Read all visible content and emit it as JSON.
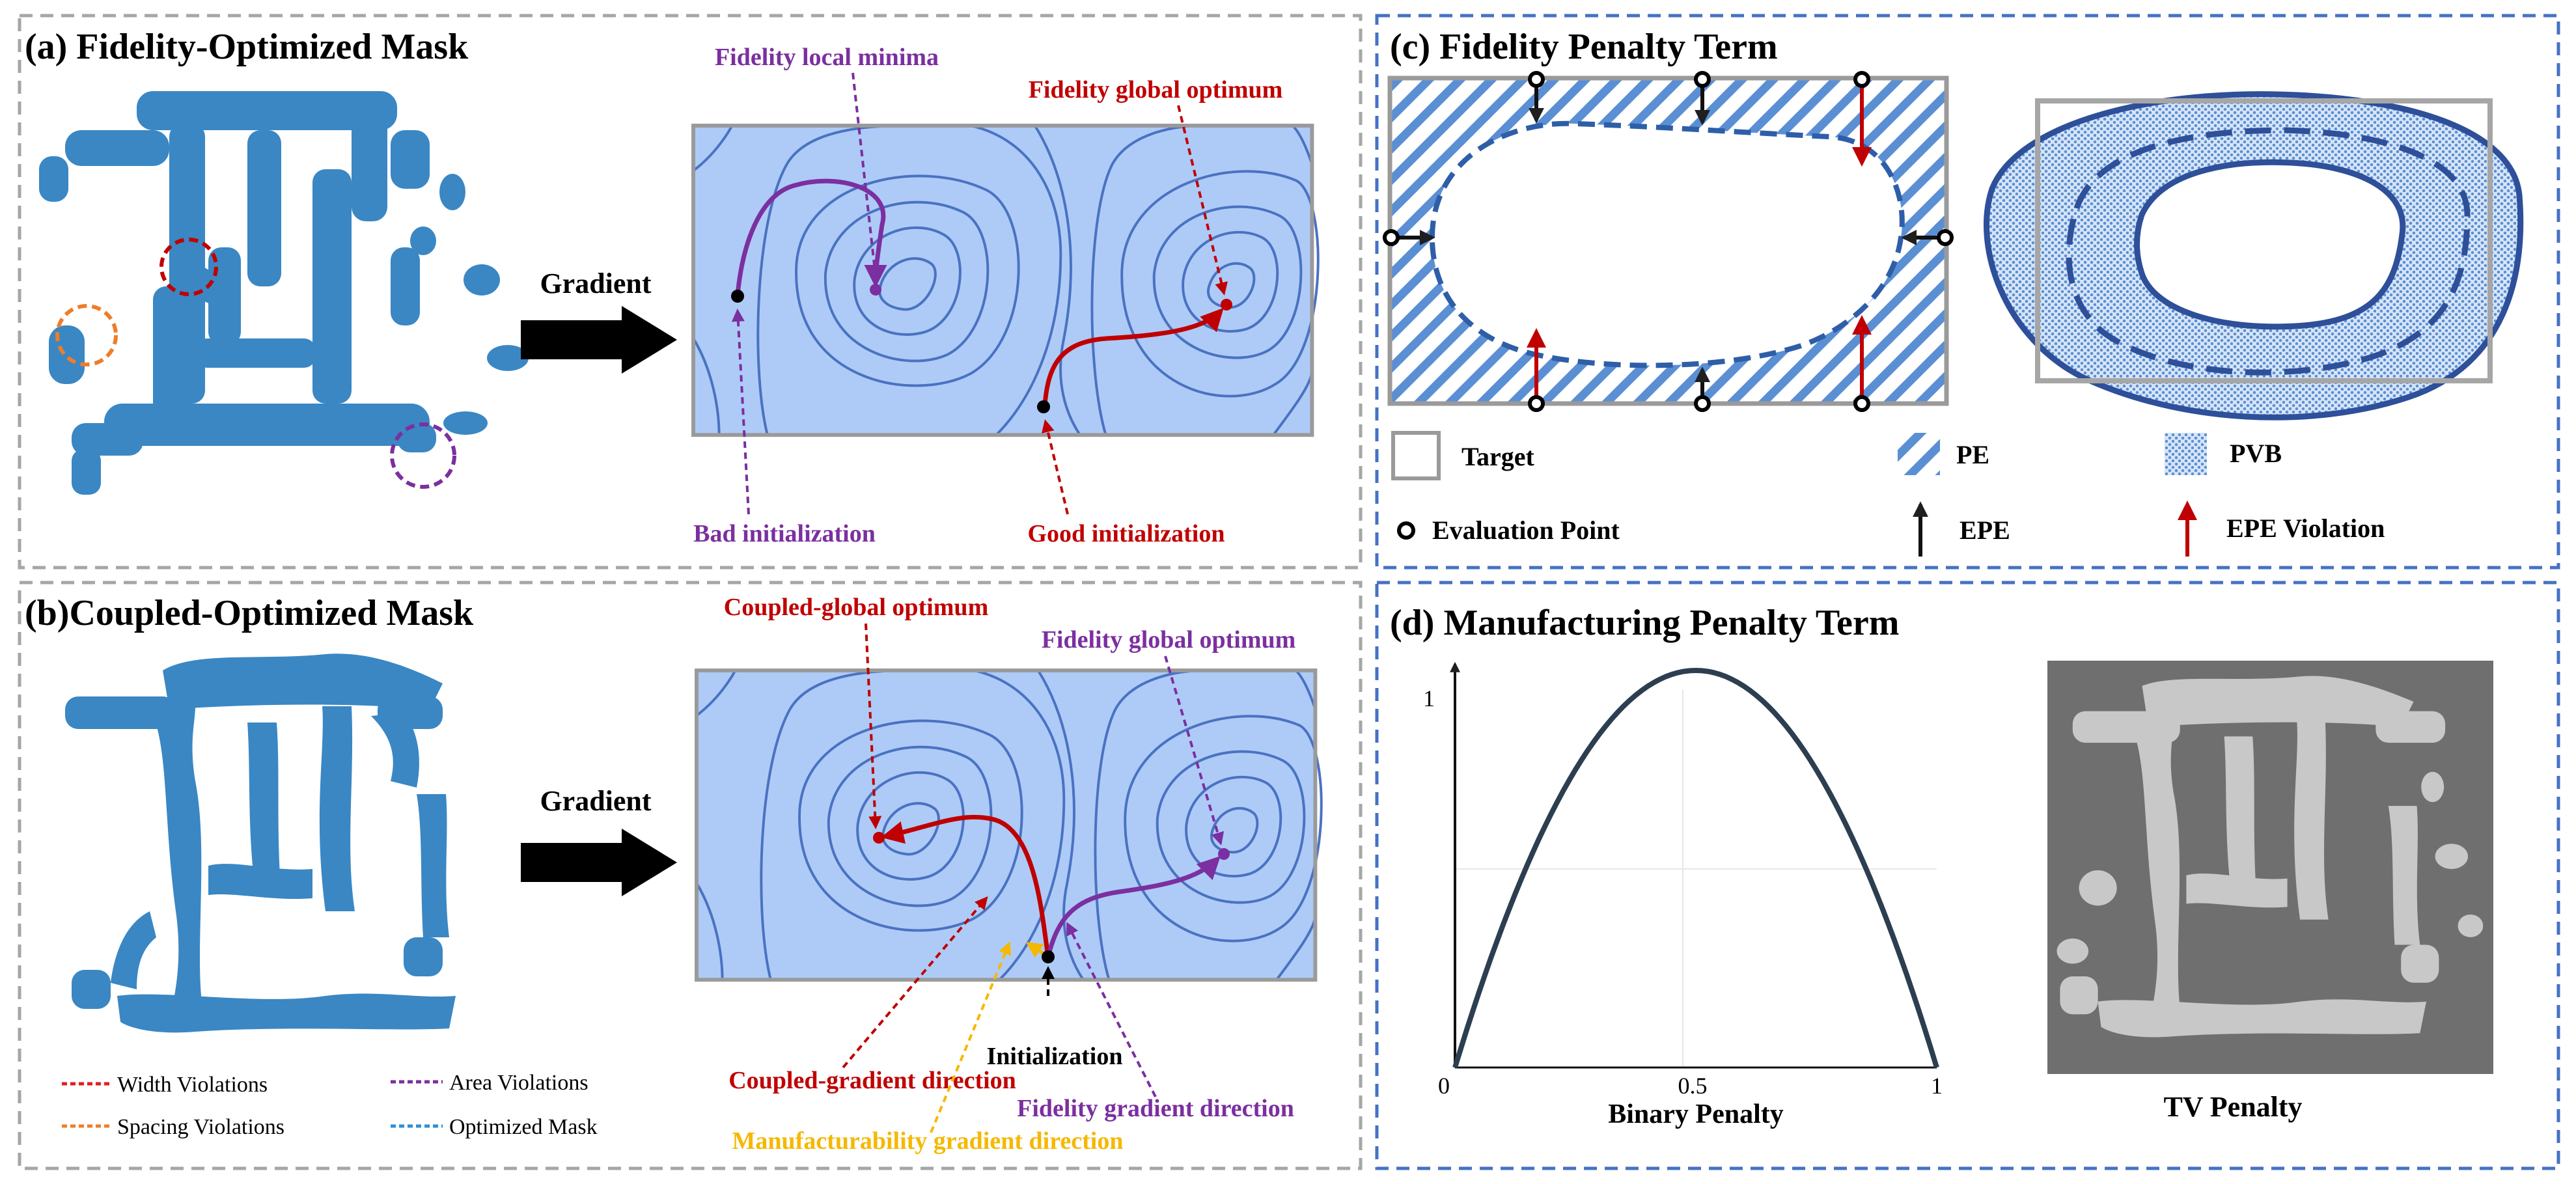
{
  "panels": {
    "a": {
      "title": "(a) Fidelity-Optimized Mask"
    },
    "b": {
      "title": "(b)Coupled-Optimized Mask"
    },
    "c": {
      "title": "(c) Fidelity Penalty Term"
    },
    "d": {
      "title": "(d) Manufacturing  Penalty Term"
    }
  },
  "landscape_a": {
    "gradient_label": "Gradient",
    "local_minima": "Fidelity local minima",
    "global_optimum": "Fidelity global optimum",
    "bad_init": "Bad initialization",
    "good_init": "Good initialization"
  },
  "landscape_b": {
    "gradient_label": "Gradient",
    "coupled_optimum": "Coupled-global optimum",
    "fidelity_optimum": "Fidelity global optimum",
    "initialization": "Initialization",
    "coupled_direction": "Coupled-gradient direction",
    "fidelity_direction": "Fidelity gradient direction",
    "manufacturability_direction": "Manufacturability gradient direction"
  },
  "violations_legend": [
    {
      "label": "Width Violations",
      "color": "#e02020"
    },
    {
      "label": "Area Violations",
      "color": "#7b2fa0"
    },
    {
      "label": "Spacing Violations",
      "color": "#ee7d2a"
    },
    {
      "label": "Optimized Mask",
      "color": "#2f8fd6"
    }
  ],
  "fidelity_legend": {
    "target": "Target",
    "pe": "PE",
    "pvb": "PVB",
    "eval_point": "Evaluation Point",
    "epe": "EPE",
    "epe_violation": "EPE Violation"
  },
  "chart_data": {
    "type": "line",
    "title": "",
    "xlabel": "Binary Penalty",
    "ylabel": "",
    "xlim": [
      0,
      1
    ],
    "ylim": [
      0,
      1
    ],
    "x_ticks": [
      "0",
      "0.5",
      "1"
    ],
    "y_ticks": [
      "1"
    ],
    "function": "4x(1-x)",
    "x": [
      0,
      0.1,
      0.2,
      0.3,
      0.4,
      0.5,
      0.6,
      0.7,
      0.8,
      0.9,
      1
    ],
    "y": [
      0,
      0.36,
      0.64,
      0.84,
      0.96,
      1,
      0.96,
      0.84,
      0.64,
      0.36,
      0
    ]
  },
  "tv": {
    "label": "TV Penalty"
  },
  "colors": {
    "mask_blue": "#3a87c4",
    "landscape_bg": "#aecbf7",
    "contour": "#4a72c2",
    "purple": "#7b2fa0",
    "red": "#c00000",
    "orange": "#f5b800",
    "dash_gray": "#a6a6a6",
    "dash_blue": "#4472c4",
    "navy": "#2c3e50"
  }
}
